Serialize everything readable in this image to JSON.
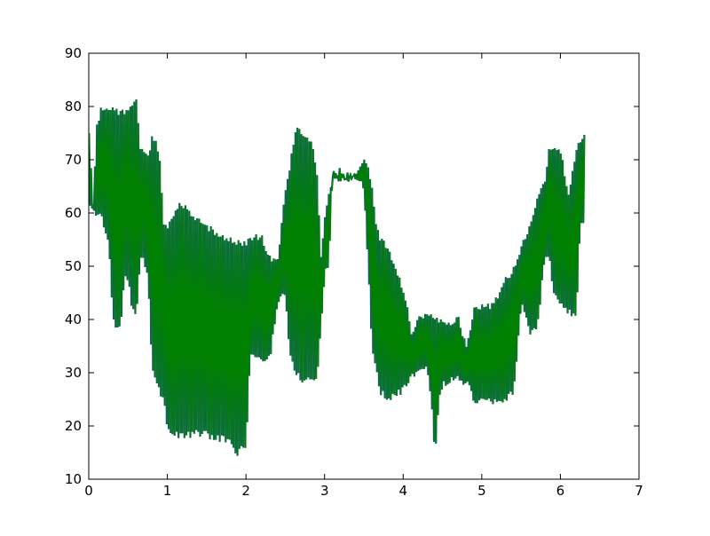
{
  "chart_data": {
    "type": "line",
    "title": "",
    "xlabel": "",
    "ylabel": "",
    "xlim": [
      0,
      7
    ],
    "ylim": [
      10,
      90
    ],
    "x_ticks": [
      "0",
      "1",
      "2",
      "3",
      "4",
      "5",
      "6",
      "7"
    ],
    "y_ticks": [
      "10",
      "20",
      "30",
      "40",
      "50",
      "60",
      "70",
      "80",
      "90"
    ],
    "grid": false,
    "legend": "none",
    "series": [
      {
        "color": "#008000",
        "shadow_color": "#1f4e9a",
        "style": "rapid-oscillation",
        "upper": [
          [
            0.0,
            75
          ],
          [
            0.05,
            62
          ],
          [
            0.1,
            77
          ],
          [
            0.15,
            80
          ],
          [
            0.2,
            80.5
          ],
          [
            0.3,
            80
          ],
          [
            0.4,
            79.5
          ],
          [
            0.5,
            80
          ],
          [
            0.55,
            81
          ],
          [
            0.6,
            81.5
          ],
          [
            0.65,
            73
          ],
          [
            0.7,
            72
          ],
          [
            0.75,
            71
          ],
          [
            0.8,
            74.5
          ],
          [
            0.85,
            74
          ],
          [
            0.9,
            70
          ],
          [
            0.95,
            58
          ],
          [
            1.0,
            58
          ],
          [
            1.05,
            59
          ],
          [
            1.1,
            61
          ],
          [
            1.15,
            62.5
          ],
          [
            1.2,
            62
          ],
          [
            1.3,
            60
          ],
          [
            1.4,
            59
          ],
          [
            1.5,
            58
          ],
          [
            1.6,
            57
          ],
          [
            1.7,
            56
          ],
          [
            1.8,
            55.5
          ],
          [
            1.9,
            55
          ],
          [
            2.0,
            55
          ],
          [
            2.1,
            56
          ],
          [
            2.2,
            56
          ],
          [
            2.3,
            52
          ],
          [
            2.4,
            52
          ],
          [
            2.5,
            65
          ],
          [
            2.55,
            69
          ],
          [
            2.6,
            74
          ],
          [
            2.65,
            77
          ],
          [
            2.7,
            76
          ],
          [
            2.8,
            74
          ],
          [
            2.85,
            73
          ],
          [
            2.9,
            68
          ],
          [
            2.95,
            52
          ],
          [
            3.0,
            60
          ],
          [
            3.05,
            64
          ],
          [
            3.1,
            67.5
          ],
          [
            3.2,
            67
          ],
          [
            3.3,
            67
          ],
          [
            3.4,
            68
          ],
          [
            3.5,
            70.5
          ],
          [
            3.55,
            69
          ],
          [
            3.6,
            65
          ],
          [
            3.65,
            59
          ],
          [
            3.7,
            56
          ],
          [
            3.8,
            54
          ],
          [
            3.9,
            50
          ],
          [
            4.0,
            46
          ],
          [
            4.05,
            43
          ],
          [
            4.1,
            38
          ],
          [
            4.2,
            41
          ],
          [
            4.3,
            41.5
          ],
          [
            4.4,
            41
          ],
          [
            4.5,
            40
          ],
          [
            4.6,
            40
          ],
          [
            4.7,
            41
          ],
          [
            4.8,
            35
          ],
          [
            4.9,
            42.5
          ],
          [
            5.0,
            43
          ],
          [
            5.1,
            43
          ],
          [
            5.2,
            45
          ],
          [
            5.3,
            48
          ],
          [
            5.4,
            50
          ],
          [
            5.5,
            54
          ],
          [
            5.6,
            58
          ],
          [
            5.7,
            63
          ],
          [
            5.8,
            67
          ],
          [
            5.85,
            72.5
          ],
          [
            5.9,
            73
          ],
          [
            6.0,
            72
          ],
          [
            6.05,
            68
          ],
          [
            6.1,
            64
          ],
          [
            6.2,
            73
          ],
          [
            6.3,
            75
          ]
        ],
        "lower": [
          [
            0.0,
            60
          ],
          [
            0.05,
            60
          ],
          [
            0.1,
            59
          ],
          [
            0.15,
            58.5
          ],
          [
            0.2,
            56
          ],
          [
            0.25,
            54
          ],
          [
            0.3,
            40
          ],
          [
            0.35,
            38
          ],
          [
            0.4,
            37.5
          ],
          [
            0.45,
            47
          ],
          [
            0.5,
            46
          ],
          [
            0.55,
            41
          ],
          [
            0.6,
            40
          ],
          [
            0.65,
            51
          ],
          [
            0.7,
            50
          ],
          [
            0.75,
            48
          ],
          [
            0.8,
            31
          ],
          [
            0.85,
            28
          ],
          [
            0.9,
            26
          ],
          [
            0.95,
            24
          ],
          [
            1.0,
            19
          ],
          [
            1.05,
            18
          ],
          [
            1.1,
            17.5
          ],
          [
            1.2,
            17.5
          ],
          [
            1.3,
            17.5
          ],
          [
            1.4,
            18
          ],
          [
            1.5,
            17.5
          ],
          [
            1.6,
            17
          ],
          [
            1.7,
            17
          ],
          [
            1.8,
            16
          ],
          [
            1.85,
            14
          ],
          [
            1.9,
            14.5
          ],
          [
            1.95,
            15
          ],
          [
            2.0,
            15.5
          ],
          [
            2.05,
            33
          ],
          [
            2.1,
            32
          ],
          [
            2.2,
            31.5
          ],
          [
            2.3,
            32
          ],
          [
            2.4,
            43
          ],
          [
            2.5,
            44
          ],
          [
            2.55,
            33
          ],
          [
            2.6,
            30
          ],
          [
            2.7,
            28
          ],
          [
            2.8,
            28
          ],
          [
            2.9,
            28
          ],
          [
            3.0,
            48
          ],
          [
            3.05,
            50
          ],
          [
            3.1,
            67
          ],
          [
            3.2,
            67
          ],
          [
            3.3,
            66
          ],
          [
            3.4,
            66
          ],
          [
            3.5,
            64
          ],
          [
            3.6,
            34
          ],
          [
            3.7,
            26
          ],
          [
            3.8,
            24
          ],
          [
            3.9,
            25
          ],
          [
            4.0,
            26
          ],
          [
            4.1,
            28.5
          ],
          [
            4.2,
            29
          ],
          [
            4.3,
            30
          ],
          [
            4.35,
            25
          ],
          [
            4.4,
            13.5
          ],
          [
            4.45,
            24
          ],
          [
            4.5,
            27
          ],
          [
            4.6,
            28
          ],
          [
            4.7,
            28
          ],
          [
            4.8,
            27.5
          ],
          [
            4.9,
            24
          ],
          [
            5.0,
            24
          ],
          [
            5.1,
            24
          ],
          [
            5.2,
            23.5
          ],
          [
            5.3,
            24
          ],
          [
            5.4,
            26
          ],
          [
            5.5,
            42
          ],
          [
            5.6,
            37
          ],
          [
            5.7,
            37.5
          ],
          [
            5.8,
            51
          ],
          [
            5.85,
            52
          ],
          [
            5.9,
            44
          ],
          [
            6.0,
            42
          ],
          [
            6.1,
            40.5
          ],
          [
            6.2,
            40
          ],
          [
            6.25,
            57
          ],
          [
            6.3,
            58
          ]
        ]
      }
    ]
  }
}
